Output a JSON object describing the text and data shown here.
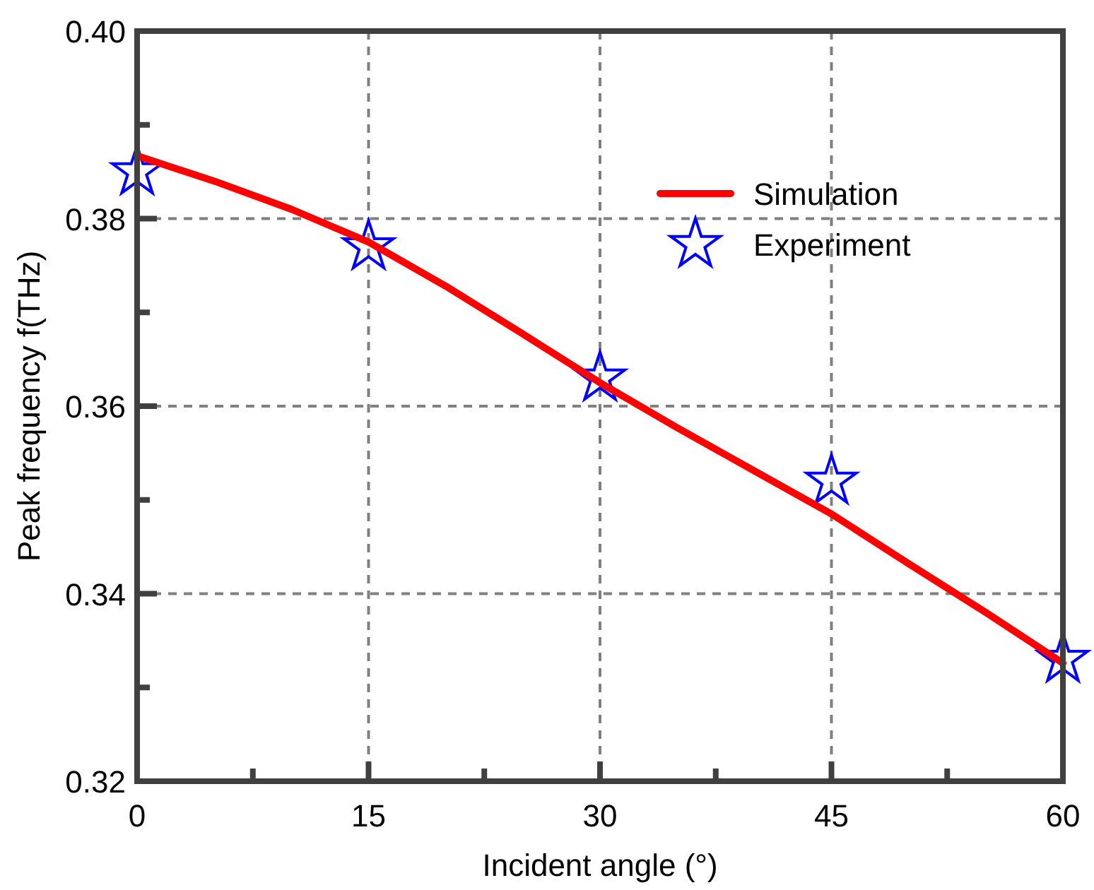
{
  "chart_data": {
    "type": "line",
    "xlabel": "Incident angle (°)",
    "ylabel": "Peak frequency f(THz)",
    "xlim": [
      0,
      60
    ],
    "xticks": [
      0,
      {
        "value": 7.5,
        "label": null
      },
      15,
      {
        "value": 22.5,
        "label": null
      },
      30,
      {
        "value": 37.5,
        "label": null
      },
      45,
      {
        "value": 52.5,
        "label": null
      },
      60
    ],
    "ylim": [
      0.32,
      0.4
    ],
    "yticks": [
      "0.32",
      {
        "value": 0.33,
        "label": null
      },
      0.34,
      {
        "value": 0.35,
        "label": null
      },
      0.36,
      {
        "value": 0.37,
        "label": null
      },
      0.38,
      {
        "value": 0.39,
        "label": null
      },
      "0.40"
    ],
    "grid": true,
    "legend": "top right",
    "series": [
      {
        "name": "Simulation",
        "color": "#ff0000",
        "marker": "none",
        "line_style": "solid",
        "x": [
          0,
          5,
          10,
          15,
          20,
          25,
          30,
          35,
          40,
          45,
          50,
          55,
          60
        ],
        "values": [
          0.3867,
          0.384,
          0.381,
          0.3775,
          0.3728,
          0.3677,
          0.3625,
          0.3577,
          0.3531,
          0.3485,
          0.3432,
          0.338,
          0.3326
        ]
      },
      {
        "name": "Experiment",
        "type": "scatter",
        "color": "#0000ff",
        "marker": "star",
        "x": [
          0,
          15,
          30,
          45,
          60
        ],
        "values": [
          0.385,
          0.377,
          0.363,
          0.352,
          0.333
        ]
      }
    ]
  }
}
